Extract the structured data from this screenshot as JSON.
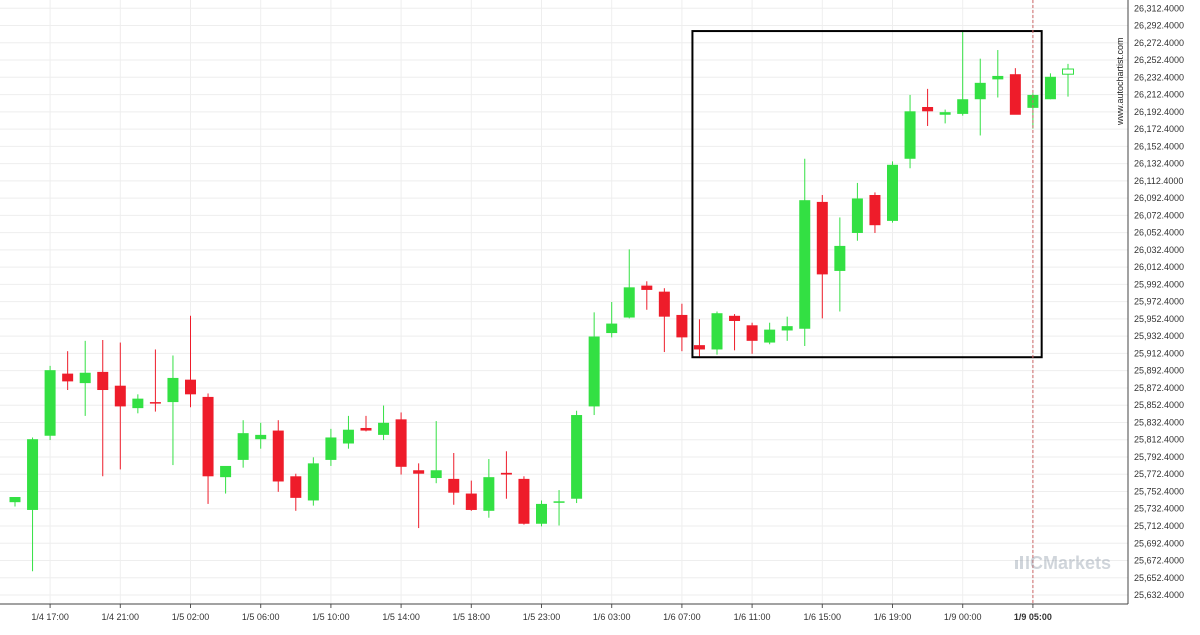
{
  "chart_data": {
    "type": "candlestick",
    "watermark": "www.autochartist.com",
    "logo": "ICMarkets",
    "colors": {
      "up": "#33e043",
      "down": "#ee1c2a",
      "box": "#000000",
      "grid": "#eeeeee",
      "axis_text": "#333333",
      "vline": "#cc6666"
    },
    "grid": true,
    "ylim": [
      25622.0,
      26322.0
    ],
    "y_ticks": [
      "26,312.4000",
      "26,292.4000",
      "26,272.4000",
      "26,252.4000",
      "26,232.4000",
      "26,212.4000",
      "26,192.4000",
      "26,172.4000",
      "26,152.4000",
      "26,132.4000",
      "26,112.4000",
      "26,092.4000",
      "26,072.4000",
      "26,052.4000",
      "26,032.4000",
      "26,012.4000",
      "25,992.4000",
      "25,972.4000",
      "25,952.4000",
      "25,932.4000",
      "25,912.4000",
      "25,892.4000",
      "25,872.4000",
      "25,852.4000",
      "25,832.4000",
      "25,812.4000",
      "25,792.4000",
      "25,772.4000",
      "25,752.4000",
      "25,732.4000",
      "25,712.4000",
      "25,692.4000",
      "25,672.4000",
      "25,652.4000",
      "25,632.4000"
    ],
    "x_ticks": [
      {
        "i": 2,
        "label": "1/4 17:00"
      },
      {
        "i": 6,
        "label": "1/4 21:00"
      },
      {
        "i": 10,
        "label": "1/5 02:00"
      },
      {
        "i": 14,
        "label": "1/5 06:00"
      },
      {
        "i": 18,
        "label": "1/5 10:00"
      },
      {
        "i": 22,
        "label": "1/5 14:00"
      },
      {
        "i": 26,
        "label": "1/5 18:00"
      },
      {
        "i": 30,
        "label": "1/5 23:00"
      },
      {
        "i": 34,
        "label": "1/6 03:00"
      },
      {
        "i": 38,
        "label": "1/6 07:00"
      },
      {
        "i": 42,
        "label": "1/6 11:00"
      },
      {
        "i": 46,
        "label": "1/6 15:00"
      },
      {
        "i": 50,
        "label": "1/6 19:00"
      },
      {
        "i": 54,
        "label": "1/9 00:00"
      },
      {
        "i": 58,
        "label": "1/9 05:00"
      }
    ],
    "current_index": 58,
    "highlight_box": {
      "start_index": 38.6,
      "end_index": 58.5,
      "high": 26286.0,
      "low": 25908.0
    },
    "candles": [
      {
        "o": 25740,
        "h": 25746,
        "l": 25735,
        "c": 25746
      },
      {
        "o": 25731,
        "h": 25815,
        "l": 25660,
        "c": 25813
      },
      {
        "o": 25817,
        "h": 25898,
        "l": 25812,
        "c": 25893
      },
      {
        "o": 25889,
        "h": 25915,
        "l": 25870,
        "c": 25880
      },
      {
        "o": 25878,
        "h": 25927,
        "l": 25840,
        "c": 25890
      },
      {
        "o": 25891,
        "h": 25928,
        "l": 25770,
        "c": 25870
      },
      {
        "o": 25875,
        "h": 25925,
        "l": 25778,
        "c": 25851
      },
      {
        "o": 25849,
        "h": 25865,
        "l": 25843,
        "c": 25860
      },
      {
        "o": 25856,
        "h": 25917,
        "l": 25845,
        "c": 25855
      },
      {
        "o": 25856,
        "h": 25910,
        "l": 25783,
        "c": 25884
      },
      {
        "o": 25882,
        "h": 25956,
        "l": 25850,
        "c": 25865
      },
      {
        "o": 25862,
        "h": 25866,
        "l": 25738,
        "c": 25770
      },
      {
        "o": 25769,
        "h": 25778,
        "l": 25750,
        "c": 25782
      },
      {
        "o": 25789,
        "h": 25835,
        "l": 25780,
        "c": 25820
      },
      {
        "o": 25813,
        "h": 25832,
        "l": 25802,
        "c": 25818
      },
      {
        "o": 25823,
        "h": 25835,
        "l": 25752,
        "c": 25764
      },
      {
        "o": 25770,
        "h": 25773,
        "l": 25730,
        "c": 25745
      },
      {
        "o": 25742,
        "h": 25792,
        "l": 25736,
        "c": 25785
      },
      {
        "o": 25789,
        "h": 25825,
        "l": 25782,
        "c": 25815
      },
      {
        "o": 25808,
        "h": 25840,
        "l": 25802,
        "c": 25824
      },
      {
        "o": 25826,
        "h": 25840,
        "l": 25822,
        "c": 25823
      },
      {
        "o": 25818,
        "h": 25852,
        "l": 25812,
        "c": 25832
      },
      {
        "o": 25836,
        "h": 25844,
        "l": 25772,
        "c": 25781
      },
      {
        "o": 25777,
        "h": 25785,
        "l": 25710,
        "c": 25773
      },
      {
        "o": 25768,
        "h": 25834,
        "l": 25762,
        "c": 25777
      },
      {
        "o": 25767,
        "h": 25797,
        "l": 25737,
        "c": 25751
      },
      {
        "o": 25750,
        "h": 25765,
        "l": 25730,
        "c": 25731
      },
      {
        "o": 25730,
        "h": 25790,
        "l": 25722,
        "c": 25769
      },
      {
        "o": 25774,
        "h": 25799,
        "l": 25744,
        "c": 25772
      },
      {
        "o": 25767,
        "h": 25770,
        "l": 25714,
        "c": 25715
      },
      {
        "o": 25715,
        "h": 25742,
        "l": 25712,
        "c": 25738
      },
      {
        "o": 25740,
        "h": 25754,
        "l": 25713,
        "c": 25741
      },
      {
        "o": 25744,
        "h": 25846,
        "l": 25739,
        "c": 25841
      },
      {
        "o": 25851,
        "h": 25960,
        "l": 25841,
        "c": 25932
      },
      {
        "o": 25936,
        "h": 25972,
        "l": 25931,
        "c": 25947
      },
      {
        "o": 25954,
        "h": 26033,
        "l": 25953,
        "c": 25989
      },
      {
        "o": 25991,
        "h": 25996,
        "l": 25963,
        "c": 25986
      },
      {
        "o": 25984,
        "h": 25988,
        "l": 25914,
        "c": 25955
      },
      {
        "o": 25957,
        "h": 25970,
        "l": 25915,
        "c": 25931
      },
      {
        "o": 25922,
        "h": 25952,
        "l": 25909,
        "c": 25917
      },
      {
        "o": 25917,
        "h": 25961,
        "l": 25911,
        "c": 25959
      },
      {
        "o": 25956,
        "h": 25958,
        "l": 25916,
        "c": 25950
      },
      {
        "o": 25945,
        "h": 25948,
        "l": 25912,
        "c": 25927
      },
      {
        "o": 25925,
        "h": 25948,
        "l": 25923,
        "c": 25940
      },
      {
        "o": 25939,
        "h": 25955,
        "l": 25927,
        "c": 25944
      },
      {
        "o": 25941,
        "h": 26138,
        "l": 25921,
        "c": 26090
      },
      {
        "o": 26088,
        "h": 26096,
        "l": 25953,
        "c": 26004
      },
      {
        "o": 26008,
        "h": 26070,
        "l": 25961,
        "c": 26037
      },
      {
        "o": 26052,
        "h": 26110,
        "l": 26043,
        "c": 26092
      },
      {
        "o": 26096,
        "h": 26099,
        "l": 26052,
        "c": 26061
      },
      {
        "o": 26066,
        "h": 26135,
        "l": 26064,
        "c": 26131
      },
      {
        "o": 26138,
        "h": 26212,
        "l": 26127,
        "c": 26193
      },
      {
        "o": 26198,
        "h": 26219,
        "l": 26176,
        "c": 26193
      },
      {
        "o": 26189,
        "h": 26195,
        "l": 26179,
        "c": 26192
      },
      {
        "o": 26190,
        "h": 26285,
        "l": 26188,
        "c": 26207
      },
      {
        "o": 26207,
        "h": 26254,
        "l": 26165,
        "c": 26226
      },
      {
        "o": 26230,
        "h": 26264,
        "l": 26209,
        "c": 26234
      },
      {
        "o": 26236,
        "h": 26243,
        "l": 26190,
        "c": 26189
      },
      {
        "o": 26197,
        "h": 26214,
        "l": 26173,
        "c": 26212
      },
      {
        "o": 26207,
        "h": 26237,
        "l": 26207,
        "c": 26233
      },
      {
        "o": 26236,
        "h": 26248,
        "l": 26210,
        "c": 26242
      }
    ]
  }
}
